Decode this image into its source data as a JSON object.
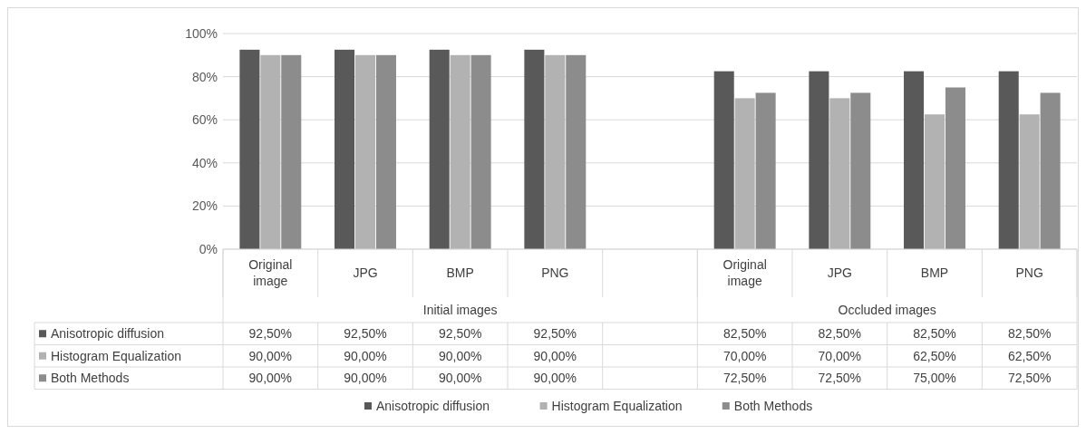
{
  "chart_data": {
    "type": "bar",
    "categories": [
      "Original image",
      "JPG",
      "BMP",
      "PNG",
      null,
      "Original image",
      "JPG",
      "BMP",
      "PNG"
    ],
    "annotations": [
      "Initial images",
      "Occluded images"
    ],
    "series": [
      {
        "name": "Anisotropic diffusion",
        "color": "#595959",
        "values": [
          92.5,
          92.5,
          92.5,
          92.5,
          null,
          82.5,
          82.5,
          82.5,
          82.5
        ],
        "value_labels": [
          "92,50%",
          "92,50%",
          "92,50%",
          "92,50%",
          null,
          "82,50%",
          "82,50%",
          "82,50%",
          "82,50%"
        ]
      },
      {
        "name": "Histogram Equalization",
        "color": "#b2b2b2",
        "values": [
          90,
          90,
          90,
          90,
          null,
          70,
          70,
          62.5,
          62.5
        ],
        "value_labels": [
          "90,00%",
          "90,00%",
          "90,00%",
          "90,00%",
          null,
          "70,00%",
          "70,00%",
          "62,50%",
          "62,50%"
        ]
      },
      {
        "name": "Both Methods",
        "color": "#8c8c8c",
        "values": [
          90,
          90,
          90,
          90,
          null,
          72.5,
          72.5,
          75,
          72.5
        ],
        "value_labels": [
          "90,00%",
          "90,00%",
          "90,00%",
          "90,00%",
          null,
          "72,50%",
          "72,50%",
          "75,00%",
          "72,50%"
        ]
      }
    ],
    "ylim": [
      0,
      100
    ],
    "yticks": [
      {
        "value": 0,
        "label": "0%"
      },
      {
        "value": 20,
        "label": "20%"
      },
      {
        "value": 40,
        "label": "40%"
      },
      {
        "value": 60,
        "label": "60%"
      },
      {
        "value": 80,
        "label": "80%"
      },
      {
        "value": 100,
        "label": "100%"
      }
    ],
    "grid": "y",
    "legend": "bottom"
  }
}
